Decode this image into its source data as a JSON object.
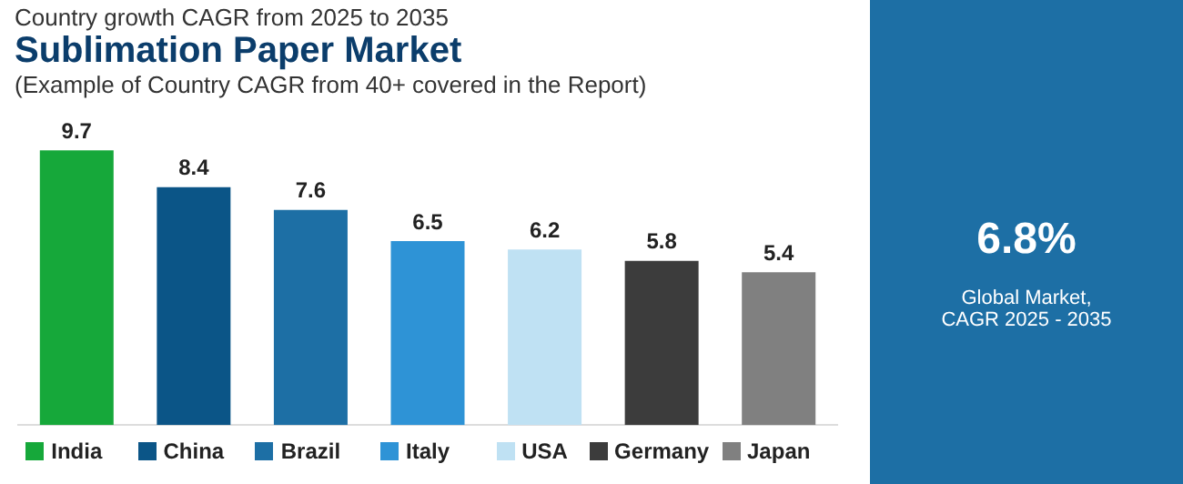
{
  "chart_data": {
    "type": "bar",
    "title": "Sublimation Paper Market",
    "subtitle": "(Example of Country CAGR from 40+ covered in the Report)",
    "annotations": [
      "Country growth CAGR from 2025 to 2035",
      "6.8%",
      "Global Market, CAGR 2025 - 2035"
    ],
    "categories": [
      "India",
      "China",
      "Brazil",
      "Italy",
      "USA",
      "Germany",
      "Japan"
    ],
    "values": [
      9.7,
      8.4,
      7.6,
      6.5,
      6.2,
      5.8,
      5.4
    ],
    "colors": [
      "#16a83a",
      "#0b5587",
      "#1d6fa5",
      "#2e93d6",
      "#bfe1f3",
      "#3c3c3c",
      "#808080"
    ],
    "data_labels": true,
    "grid": false,
    "tick_labels": "x"
  }
}
